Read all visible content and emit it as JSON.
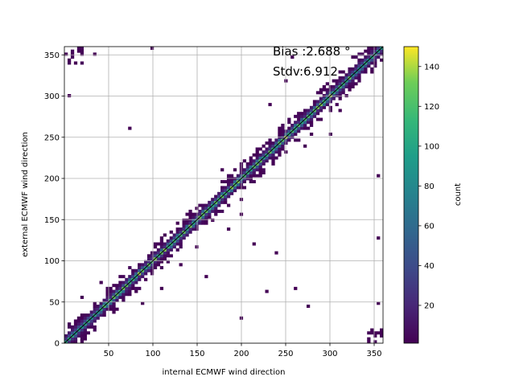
{
  "chart_data": {
    "type": "heatmap",
    "title": "",
    "xlabel": "internal ECMWF wind direction",
    "ylabel": "external ECMWF wind direction",
    "xlim": [
      0,
      360
    ],
    "ylim": [
      0,
      360
    ],
    "x_ticks": [
      50,
      100,
      150,
      200,
      250,
      300,
      350
    ],
    "x_tick_labels": [
      "50",
      "100",
      "150",
      "200",
      "250",
      "300",
      "350"
    ],
    "y_ticks": [
      0,
      50,
      100,
      150,
      200,
      250,
      300,
      350
    ],
    "y_tick_labels": [
      "0",
      "50",
      "100",
      "150",
      "200",
      "250",
      "300",
      "350"
    ],
    "grid": true,
    "bin_width": 3.6,
    "annotations": [
      "Bias :2.688 °",
      "Stdv:6.912"
    ],
    "colorbar": {
      "label": "count",
      "colormap": "viridis",
      "range": [
        1,
        150
      ],
      "ticks": [
        20,
        40,
        60,
        80,
        100,
        120,
        140
      ],
      "tick_labels": [
        "20",
        "40",
        "60",
        "80",
        "100",
        "120",
        "140"
      ]
    },
    "reference_line": {
      "from": [
        0,
        0
      ],
      "to": [
        360,
        360
      ],
      "color": "#000000"
    },
    "distribution": {
      "description_of_bins": "Counts concentrated along the 1:1 diagonal (peak ~140 near center), spreading to a band of roughly ±15° around the diagonal, with scattered outliers and wrap-around clusters near (0,360) and (360,0).",
      "outliers": [
        [
          98,
          358
        ],
        [
          5,
          300
        ],
        [
          35,
          352
        ],
        [
          232,
          291
        ],
        [
          290,
          273
        ],
        [
          257,
          349
        ],
        [
          250,
          318
        ],
        [
          270,
          240
        ],
        [
          255,
          248
        ],
        [
          310,
          282
        ],
        [
          324,
          347
        ],
        [
          356,
          203
        ],
        [
          356,
          126
        ],
        [
          356,
          48
        ],
        [
          350,
          10
        ],
        [
          228,
          63
        ],
        [
          200,
          30
        ],
        [
          275,
          45
        ],
        [
          260,
          65
        ],
        [
          238,
          110
        ],
        [
          150,
          118
        ],
        [
          130,
          95
        ],
        [
          160,
          80
        ],
        [
          110,
          65
        ],
        [
          88,
          50
        ],
        [
          55,
          36
        ],
        [
          40,
          72
        ],
        [
          20,
          55
        ],
        [
          15,
          30
        ],
        [
          72,
          260
        ],
        [
          200,
          157
        ],
        [
          185,
          140
        ],
        [
          215,
          120
        ],
        [
          330,
          330
        ],
        [
          340,
          348
        ],
        [
          300,
          255
        ],
        [
          280,
          255
        ],
        [
          200,
          173
        ],
        [
          178,
          210
        ],
        [
          318,
          300
        ]
      ]
    }
  }
}
